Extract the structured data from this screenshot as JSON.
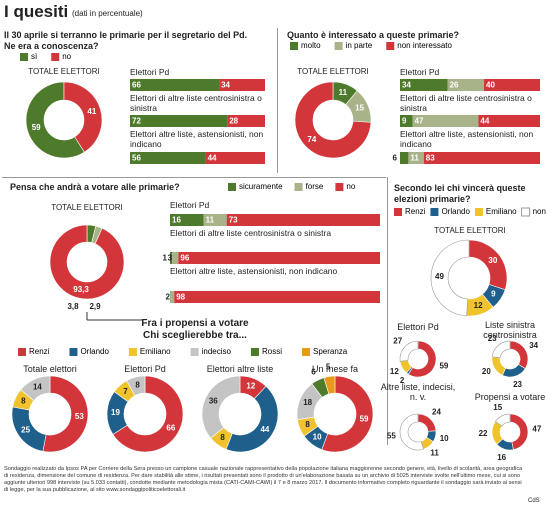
{
  "header": {
    "title": "I quesiti",
    "subtitle": "(dati in percentuale)"
  },
  "panels": [
    {
      "question": "Il 30 aprile si terranno le primarie per il segretario del Pd. Ne era a conoscenza?",
      "legend": [
        {
          "name": "sì",
          "color": "#4e7a2c"
        },
        {
          "name": "no",
          "color": "#d2363a"
        }
      ],
      "donut": {
        "title": "TOTALE ELETTORI",
        "values": [
          59,
          41
        ]
      },
      "bars": [
        {
          "label": "Elettori Pd",
          "values": [
            66,
            34
          ]
        },
        {
          "label": "Elettori di altre liste centrosinistra o sinistra",
          "values": [
            72,
            28
          ]
        },
        {
          "label": "Elettori altre liste, astensionisti, non indicano",
          "values": [
            56,
            44
          ]
        }
      ]
    },
    {
      "question": "Quanto è interessato a queste primarie?",
      "legend": [
        {
          "name": "molto",
          "color": "#4e7a2c"
        },
        {
          "name": "in parte",
          "color": "#a8b38a"
        },
        {
          "name": "non interessato",
          "color": "#d2363a"
        }
      ],
      "donut": {
        "title": "TOTALE ELETTORI",
        "values": [
          11,
          15,
          74
        ]
      },
      "bars": [
        {
          "label": "Elettori Pd",
          "values": [
            34,
            26,
            40
          ]
        },
        {
          "label": "Elettori di altre liste centrosinistra o sinistra",
          "values": [
            9,
            47,
            44
          ]
        },
        {
          "label": "Elettori altre liste, astensionisti, non indicano",
          "values": [
            6,
            11,
            83
          ]
        }
      ]
    },
    {
      "question": "Pensa che andrà a votare alle primarie?",
      "legend": [
        {
          "name": "sicuramente",
          "color": "#4e7a2c"
        },
        {
          "name": "forse",
          "color": "#a8b38a"
        },
        {
          "name": "no",
          "color": "#d2363a"
        }
      ],
      "donut": {
        "title": "TOTALE ELETTORI",
        "values": [
          3.8,
          2.9,
          93.3
        ],
        "value_labels": [
          "3,8",
          "2,9",
          "93,3"
        ]
      },
      "bars": [
        {
          "label": "Elettori Pd",
          "values": [
            16,
            11,
            73
          ]
        },
        {
          "label": "Elettori di altre liste centrosinistra o sinistra",
          "values": [
            1,
            3,
            96
          ]
        },
        {
          "label": "Elettori altre liste, astensionisti, non indicano",
          "values": [
            null,
            2,
            98
          ]
        }
      ]
    },
    {
      "question": "Secondo lei chi vincerà queste elezioni primarie?",
      "legend": [
        {
          "name": "Renzi",
          "color": "#d2363a"
        },
        {
          "name": "Orlando",
          "color": "#1f5f8b"
        },
        {
          "name": "Emiliano",
          "color": "#f0c22c"
        },
        {
          "name": "non sa",
          "color": "#ffffff"
        }
      ],
      "donut": {
        "title": "TOTALE ELETTORI",
        "values": [
          30,
          9,
          12,
          49
        ]
      },
      "donuts": [
        {
          "title": "Elettori Pd",
          "values": [
            59,
            2,
            12,
            27
          ]
        },
        {
          "title": "Liste sinistra centrosinistra",
          "values": [
            34,
            23,
            20,
            23
          ]
        },
        {
          "title": "Altre liste, indecisi, n. v.",
          "values": [
            24,
            10,
            11,
            55
          ]
        },
        {
          "title": "Propensi a votare",
          "values": [
            47,
            16,
            22,
            15
          ]
        }
      ]
    },
    {
      "question": "Fra i propensi a votare Chi sceglierebbe tra...",
      "legend": [
        {
          "name": "Renzi",
          "color": "#d2363a"
        },
        {
          "name": "Orlando",
          "color": "#1f5f8b"
        },
        {
          "name": "Emiliano",
          "color": "#f0c22c"
        },
        {
          "name": "indeciso",
          "color": "#c4c4c4"
        },
        {
          "name": "Rossi",
          "color": "#4e7a2c"
        },
        {
          "name": "Speranza",
          "color": "#e89a1c"
        }
      ],
      "donuts": [
        {
          "title": "Totale elettori",
          "values": [
            53,
            25,
            8,
            14,
            null,
            null
          ]
        },
        {
          "title": "Elettori Pd",
          "values": [
            66,
            19,
            7,
            8,
            null,
            null
          ]
        },
        {
          "title": "Elettori altre liste",
          "values": [
            12,
            44,
            8,
            36,
            null,
            null
          ]
        },
        {
          "title": "Un mese fa",
          "values": [
            59,
            10,
            8,
            18,
            6,
            5
          ]
        }
      ]
    }
  ],
  "footnote": "Sondaggio realizzato da Ipsos PA per Corriere della Sera presso un campione casuale nazionale rappresentativo della popolazione italiana maggiorenne secondo genere, età, livello di scolarità, area geografica di residenza, dimensione del comune di residenza. Per dare stabilità alle stime, i risultati presentati sono il prodotto di un'elaborazione basata su un archivio di 5025 interviste svolte nell'ultimo mese, cui si sono aggiunte ulteriori 998 interviste (su 5.033 contatti), condotte mediante metodologia mista (CATI-CAMI-CAWI) il 7 e 8 marzo 2017. Il documento informativo completo riguardante il sondaggio sarà inviato ai sensi di legge, per la sua pubblicazione, al sito www.sondaggipoliticoelettorali.it",
  "credit": "CdS"
}
